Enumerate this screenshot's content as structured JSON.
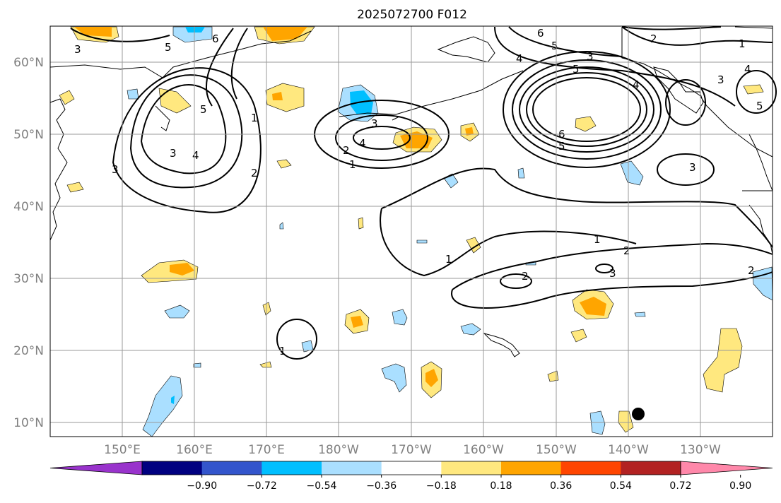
{
  "title": "2025072700 F012",
  "lat_labels": [
    "60°N",
    "50°N",
    "40°N",
    "30°N",
    "20°N",
    "10°N"
  ],
  "lon_labels": [
    "150°E",
    "160°E",
    "170°E",
    "180°W",
    "170°W",
    "160°W",
    "150°W",
    "140°W",
    "130°W"
  ],
  "contour_labels": [
    "1",
    "2",
    "3",
    "4",
    "5",
    "6"
  ],
  "colorbar": {
    "ticks": [
      "−0.90",
      "−0.72",
      "−0.54",
      "−0.36",
      "−0.18",
      "0.18",
      "0.36",
      "0.54",
      "0.72",
      "0.90"
    ],
    "colors": [
      "#9933cc",
      "#000080",
      "#3355cc",
      "#00bfff",
      "#aadfff",
      "#ffffff",
      "#ffe87f",
      "#ffa500",
      "#ff4500",
      "#b22222",
      "#ff88aa"
    ]
  },
  "marker": "storm-position-dot"
}
